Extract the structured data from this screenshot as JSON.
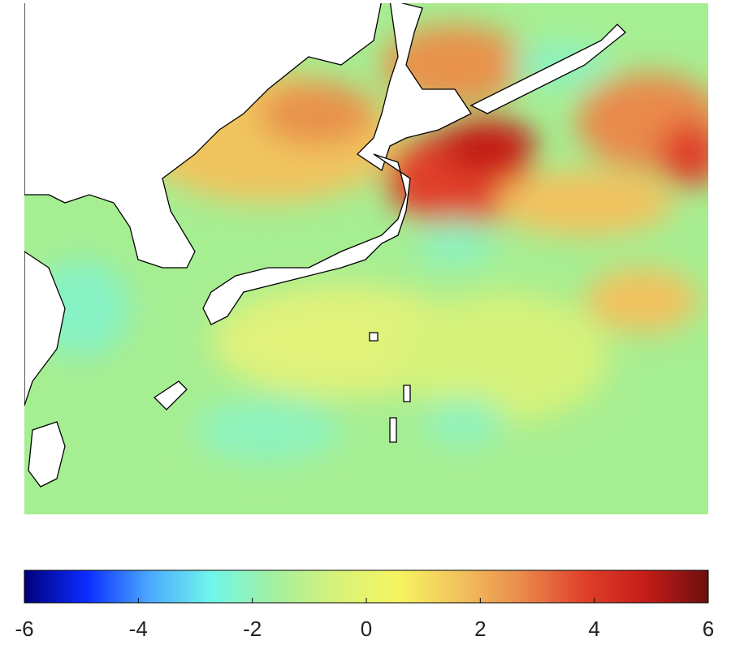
{
  "colorbar": {
    "lim": [
      -6,
      6
    ],
    "ticks": [
      -6,
      -4,
      -2,
      0,
      2,
      4,
      6
    ],
    "colors": [
      "#00007a",
      "#0a2cff",
      "#4aa8ff",
      "#6ff6ea",
      "#a2f0a0",
      "#d6f27a",
      "#f6f560",
      "#f2c25e",
      "#e98a4c",
      "#e0402a",
      "#c41c18",
      "#6a100e"
    ]
  }
}
